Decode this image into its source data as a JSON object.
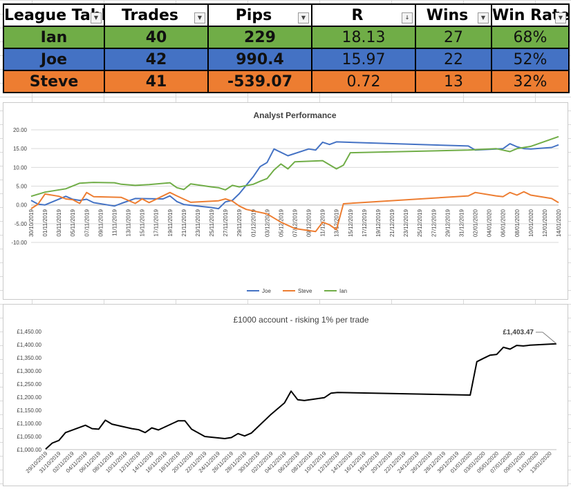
{
  "table": {
    "headers": [
      "League Tabl",
      "Trades",
      "Pips",
      "R",
      "Wins",
      "Win Rate"
    ],
    "rows": [
      {
        "name": "Ian",
        "trades": "40",
        "pips": "229",
        "r": "18.13",
        "wins": "27",
        "win_rate": "68%",
        "color": "#70AD47"
      },
      {
        "name": "Joe",
        "trades": "42",
        "pips": "990.4",
        "r": "15.97",
        "wins": "22",
        "win_rate": "52%",
        "color": "#4472C4"
      },
      {
        "name": "Steve",
        "trades": "41",
        "pips": "-539.07",
        "r": "0.72",
        "wins": "13",
        "win_rate": "32%",
        "color": "#ED7D31"
      }
    ]
  },
  "chart_data": [
    {
      "type": "line",
      "title": "Analyst Performance",
      "ylim": [
        -10,
        20
      ],
      "yticks": [
        "20.00",
        "15.00",
        "10.00",
        "5.00",
        "0.00",
        "-5.00",
        "-10.00"
      ],
      "xlim": [
        "2019-10-30",
        "2020-01-14"
      ],
      "xticks": [
        "30/10/2019",
        "01/11/2019",
        "03/11/2019",
        "05/11/2019",
        "07/11/2019",
        "09/11/2019",
        "11/11/2019",
        "13/11/2019",
        "15/11/2019",
        "17/11/2019",
        "19/11/2019",
        "21/11/2019",
        "23/11/2019",
        "25/11/2019",
        "27/11/2019",
        "29/11/2019",
        "01/12/2019",
        "03/12/2019",
        "05/12/2019",
        "07/12/2019",
        "09/12/2019",
        "11/12/2019",
        "13/12/2019",
        "15/12/2019",
        "17/12/2019",
        "19/12/2019",
        "21/12/2019",
        "23/12/2019",
        "25/12/2019",
        "27/12/2019",
        "29/12/2019",
        "31/12/2019",
        "02/01/2020",
        "04/01/2020",
        "06/01/2020",
        "08/01/2020",
        "10/01/2020",
        "12/01/2020",
        "14/01/2020"
      ],
      "legend_position": "bottom",
      "series": [
        {
          "name": "Joe",
          "color": "#4472C4",
          "points": [
            [
              "2019-10-30",
              1.2
            ],
            [
              "2019-10-31",
              0.2
            ],
            [
              "2019-11-01",
              0.0
            ],
            [
              "2019-11-04",
              2.3
            ],
            [
              "2019-11-05",
              1.5
            ],
            [
              "2019-11-06",
              1.2
            ],
            [
              "2019-11-07",
              1.5
            ],
            [
              "2019-11-08",
              0.6
            ],
            [
              "2019-11-11",
              -0.3
            ],
            [
              "2019-11-12",
              0.4
            ],
            [
              "2019-11-14",
              1.7
            ],
            [
              "2019-11-18",
              1.6
            ],
            [
              "2019-11-19",
              2.4
            ],
            [
              "2019-11-20",
              0.9
            ],
            [
              "2019-11-21",
              0.1
            ],
            [
              "2019-11-25",
              -0.7
            ],
            [
              "2019-11-26",
              -1.0
            ],
            [
              "2019-11-27",
              0.8
            ],
            [
              "2019-11-28",
              1.2
            ],
            [
              "2019-11-29",
              3.0
            ],
            [
              "2019-12-01",
              7.5
            ],
            [
              "2019-12-02",
              10.2
            ],
            [
              "2019-12-03",
              11.3
            ],
            [
              "2019-12-04",
              14.9
            ],
            [
              "2019-12-06",
              13.1
            ],
            [
              "2019-12-09",
              14.9
            ],
            [
              "2019-12-10",
              14.6
            ],
            [
              "2019-12-11",
              16.7
            ],
            [
              "2019-12-12",
              16.1
            ],
            [
              "2019-12-13",
              16.8
            ],
            [
              "2020-01-01",
              15.7
            ],
            [
              "2020-01-02",
              14.6
            ],
            [
              "2020-01-06",
              15.0
            ],
            [
              "2020-01-07",
              16.3
            ],
            [
              "2020-01-08",
              15.5
            ],
            [
              "2020-01-09",
              15.0
            ],
            [
              "2020-01-10",
              14.9
            ],
            [
              "2020-01-13",
              15.3
            ],
            [
              "2020-01-14",
              16.0
            ]
          ]
        },
        {
          "name": "Steve",
          "color": "#ED7D31",
          "points": [
            [
              "2019-10-30",
              -1.0
            ],
            [
              "2019-10-31",
              0.2
            ],
            [
              "2019-11-01",
              2.9
            ],
            [
              "2019-11-03",
              2.3
            ],
            [
              "2019-11-04",
              1.6
            ],
            [
              "2019-11-05",
              1.4
            ],
            [
              "2019-11-06",
              0.4
            ],
            [
              "2019-11-07",
              3.3
            ],
            [
              "2019-11-08",
              2.2
            ],
            [
              "2019-11-12",
              2.0
            ],
            [
              "2019-11-14",
              0.4
            ],
            [
              "2019-11-15",
              1.6
            ],
            [
              "2019-11-16",
              0.6
            ],
            [
              "2019-11-19",
              3.3
            ],
            [
              "2019-11-20",
              2.4
            ],
            [
              "2019-11-22",
              0.7
            ],
            [
              "2019-11-26",
              1.1
            ],
            [
              "2019-11-27",
              1.6
            ],
            [
              "2019-11-28",
              1.0
            ],
            [
              "2019-11-29",
              -0.3
            ],
            [
              "2019-11-30",
              -1.2
            ],
            [
              "2019-12-03",
              -2.4
            ],
            [
              "2019-12-05",
              -4.6
            ],
            [
              "2019-12-07",
              -6.3
            ],
            [
              "2019-12-10",
              -7.1
            ],
            [
              "2019-12-11",
              -4.6
            ],
            [
              "2019-12-12",
              -5.3
            ],
            [
              "2019-12-13",
              -6.6
            ],
            [
              "2019-12-14",
              0.3
            ],
            [
              "2020-01-01",
              2.4
            ],
            [
              "2020-01-02",
              3.3
            ],
            [
              "2020-01-05",
              2.4
            ],
            [
              "2020-01-06",
              2.2
            ],
            [
              "2020-01-07",
              3.3
            ],
            [
              "2020-01-08",
              2.6
            ],
            [
              "2020-01-09",
              3.5
            ],
            [
              "2020-01-10",
              2.6
            ],
            [
              "2020-01-13",
              1.7
            ],
            [
              "2020-01-14",
              0.6
            ]
          ]
        },
        {
          "name": "Ian",
          "color": "#70AD47",
          "points": [
            [
              "2019-10-30",
              2.3
            ],
            [
              "2019-11-01",
              3.4
            ],
            [
              "2019-11-04",
              4.3
            ],
            [
              "2019-11-06",
              5.8
            ],
            [
              "2019-11-08",
              6.0
            ],
            [
              "2019-11-11",
              5.9
            ],
            [
              "2019-11-12",
              5.5
            ],
            [
              "2019-11-14",
              5.2
            ],
            [
              "2019-11-16",
              5.4
            ],
            [
              "2019-11-19",
              5.9
            ],
            [
              "2019-11-20",
              4.6
            ],
            [
              "2019-11-21",
              4.1
            ],
            [
              "2019-11-22",
              5.6
            ],
            [
              "2019-11-25",
              4.8
            ],
            [
              "2019-11-26",
              4.6
            ],
            [
              "2019-11-27",
              4.0
            ],
            [
              "2019-11-28",
              5.2
            ],
            [
              "2019-11-29",
              4.8
            ],
            [
              "2019-12-01",
              5.5
            ],
            [
              "2019-12-02",
              6.3
            ],
            [
              "2019-12-03",
              7.0
            ],
            [
              "2019-12-04",
              9.3
            ],
            [
              "2019-12-05",
              10.9
            ],
            [
              "2019-12-06",
              9.6
            ],
            [
              "2019-12-07",
              11.5
            ],
            [
              "2019-12-11",
              11.8
            ],
            [
              "2019-12-13",
              9.6
            ],
            [
              "2019-12-14",
              10.6
            ],
            [
              "2019-12-15",
              13.9
            ],
            [
              "2020-01-01",
              14.6
            ],
            [
              "2020-01-05",
              15.0
            ],
            [
              "2020-01-07",
              14.2
            ],
            [
              "2020-01-08",
              15.0
            ],
            [
              "2020-01-10",
              15.6
            ],
            [
              "2020-01-14",
              18.2
            ]
          ]
        }
      ]
    },
    {
      "type": "line",
      "title": "£1000 account - risking 1% per trade",
      "ylim": [
        1000,
        1450
      ],
      "yticks": [
        "£1,450.00",
        "£1,400.00",
        "£1,350.00",
        "£1,300.00",
        "£1,250.00",
        "£1,200.00",
        "£1,150.00",
        "£1,100.00",
        "£1,050.00",
        "£1,000.00"
      ],
      "xlim": [
        "2019-10-29",
        "2020-01-14"
      ],
      "xticks": [
        "29/10/2019",
        "31/10/2019",
        "02/11/2019",
        "04/11/2019",
        "06/11/2019",
        "08/11/2019",
        "10/11/2019",
        "12/11/2019",
        "14/11/2019",
        "16/11/2019",
        "18/11/2019",
        "20/11/2019",
        "22/11/2019",
        "24/11/2019",
        "26/11/2019",
        "28/11/2019",
        "30/11/2019",
        "02/12/2019",
        "04/12/2019",
        "06/12/2019",
        "08/12/2019",
        "10/12/2019",
        "12/12/2019",
        "14/12/2019",
        "16/12/2019",
        "18/12/2019",
        "20/12/2019",
        "22/12/2019",
        "24/12/2019",
        "26/12/2019",
        "28/12/2019",
        "30/12/2019",
        "01/01/2020",
        "03/01/2020",
        "05/01/2020",
        "07/01/2020",
        "09/01/2020",
        "11/01/2020",
        "13/01/2020"
      ],
      "annotation": "£1,403.47",
      "series": [
        {
          "name": "",
          "color": "#000000",
          "points": [
            [
              "2019-10-29",
              1002
            ],
            [
              "2019-10-30",
              1025
            ],
            [
              "2019-10-31",
              1035
            ],
            [
              "2019-11-01",
              1065
            ],
            [
              "2019-11-04",
              1093
            ],
            [
              "2019-11-05",
              1080
            ],
            [
              "2019-11-06",
              1078
            ],
            [
              "2019-11-07",
              1112
            ],
            [
              "2019-11-08",
              1097
            ],
            [
              "2019-11-11",
              1080
            ],
            [
              "2019-11-12",
              1076
            ],
            [
              "2019-11-13",
              1065
            ],
            [
              "2019-11-14",
              1083
            ],
            [
              "2019-11-15",
              1075
            ],
            [
              "2019-11-18",
              1110
            ],
            [
              "2019-11-19",
              1110
            ],
            [
              "2019-11-20",
              1078
            ],
            [
              "2019-11-22",
              1050
            ],
            [
              "2019-11-25",
              1042
            ],
            [
              "2019-11-26",
              1046
            ],
            [
              "2019-11-27",
              1061
            ],
            [
              "2019-11-28",
              1052
            ],
            [
              "2019-11-29",
              1063
            ],
            [
              "2019-12-02",
              1135
            ],
            [
              "2019-12-04",
              1178
            ],
            [
              "2019-12-05",
              1223
            ],
            [
              "2019-12-06",
              1190
            ],
            [
              "2019-12-07",
              1187
            ],
            [
              "2019-12-10",
              1198
            ],
            [
              "2019-12-11",
              1215
            ],
            [
              "2019-12-12",
              1218
            ],
            [
              "2020-01-01",
              1208
            ],
            [
              "2020-01-02",
              1335
            ],
            [
              "2020-01-03",
              1348
            ],
            [
              "2020-01-04",
              1360
            ],
            [
              "2020-01-05",
              1363
            ],
            [
              "2020-01-06",
              1390
            ],
            [
              "2020-01-07",
              1383
            ],
            [
              "2020-01-08",
              1397
            ],
            [
              "2020-01-09",
              1395
            ],
            [
              "2020-01-10",
              1398
            ],
            [
              "2020-01-14",
              1403.47
            ]
          ]
        }
      ]
    }
  ]
}
